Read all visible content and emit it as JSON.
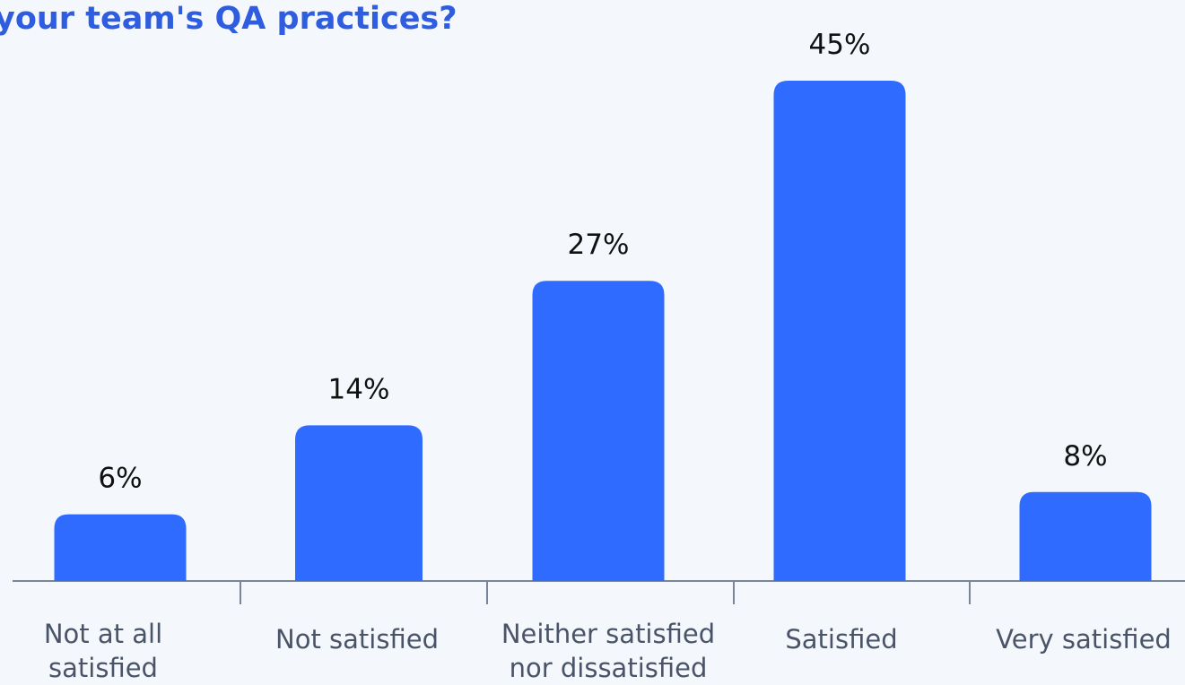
{
  "chart_data": {
    "type": "bar",
    "title": "your team's QA practices?",
    "categories": [
      "Not at all satisfied",
      "Not satisfied",
      "Neither satisfied nor dissatisfied",
      "Satisfied",
      "Very satisfied"
    ],
    "values": [
      6,
      14,
      27,
      45,
      8
    ],
    "value_labels": [
      "6%",
      "14%",
      "27%",
      "45%",
      "8%"
    ],
    "color": "#2f6bff"
  }
}
